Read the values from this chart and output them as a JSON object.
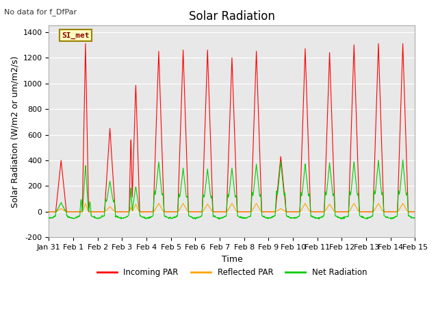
{
  "title": "Solar Radiation",
  "top_left_text": "No data for f_DfPar",
  "ylabel": "Solar Radiation (W/m2 or um/m2/s)",
  "xlabel": "Time",
  "ylim": [
    -200,
    1450
  ],
  "xlim_days": [
    0,
    15
  ],
  "legend_box_label": "SI_met",
  "legend_entries": [
    "Incoming PAR",
    "Reflected PAR",
    "Net Radiation"
  ],
  "legend_colors": [
    "#FF0000",
    "#FFA500",
    "#00CC00"
  ],
  "background_color": "#E8E8E8",
  "fig_background": "#FFFFFF",
  "grid_color": "#FFFFFF",
  "xtick_labels": [
    "Jan 31",
    "Feb 1",
    "Feb 2",
    "Feb 3",
    "Feb 4",
    "Feb 5",
    "Feb 6",
    "Feb 7",
    "Feb 8",
    "Feb 9",
    "Feb 10",
    "Feb 11",
    "Feb 12",
    "Feb 13",
    "Feb 14",
    "Feb 15"
  ],
  "xtick_positions": [
    0,
    1,
    2,
    3,
    4,
    5,
    6,
    7,
    8,
    9,
    10,
    11,
    12,
    13,
    14,
    15
  ],
  "ytick_positions": [
    -200,
    0,
    200,
    400,
    600,
    800,
    1000,
    1200,
    1400
  ],
  "title_fontsize": 12,
  "axis_label_fontsize": 9,
  "tick_fontsize": 8,
  "day_peaks_incoming": [
    400,
    1310,
    650,
    1000,
    1250,
    1260,
    1260,
    1200,
    1250,
    430,
    1270,
    1240,
    1300,
    1310
  ],
  "day_peaks_net": [
    70,
    360,
    240,
    370,
    390,
    340,
    330,
    340,
    370,
    390,
    370,
    380,
    390,
    400
  ],
  "day_peaks_reflected": [
    25,
    65,
    40,
    65,
    65,
    65,
    60,
    65,
    65,
    25,
    65,
    60,
    65,
    65
  ]
}
